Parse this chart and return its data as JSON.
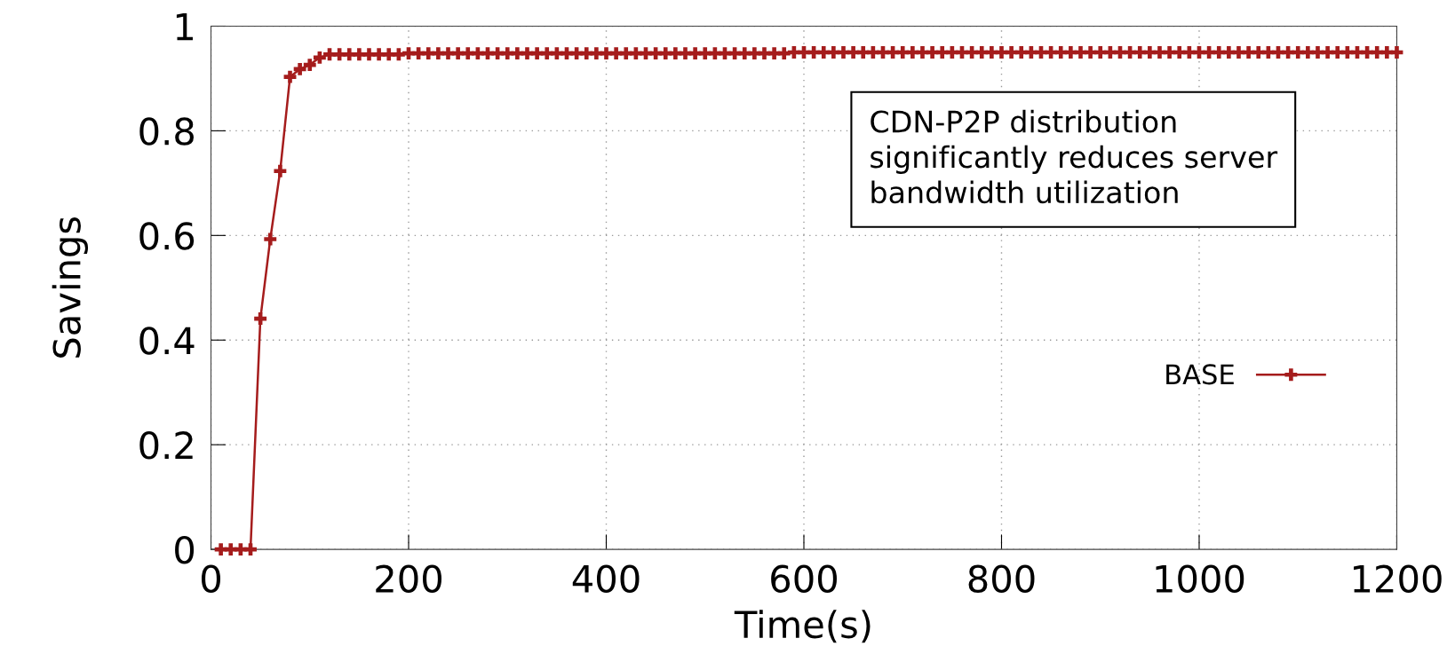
{
  "chart_data": {
    "type": "line",
    "xlabel": "Time(s)",
    "ylabel": "Savings",
    "annotations": [
      "CDN-P2P distribution\nsignificantly reduces server\nbandwidth utilization"
    ],
    "x": [
      10,
      20,
      30,
      40,
      50,
      60,
      70,
      80,
      90,
      100,
      110,
      120,
      130,
      140,
      150,
      160,
      170,
      180,
      190,
      200,
      210,
      220,
      230,
      240,
      250,
      260,
      270,
      280,
      290,
      300,
      310,
      320,
      330,
      340,
      350,
      360,
      370,
      380,
      390,
      400,
      410,
      420,
      430,
      440,
      450,
      460,
      470,
      480,
      490,
      500,
      510,
      520,
      530,
      540,
      550,
      560,
      570,
      580,
      590,
      600,
      610,
      620,
      630,
      640,
      650,
      660,
      670,
      680,
      690,
      700,
      710,
      720,
      730,
      740,
      750,
      760,
      770,
      780,
      790,
      800,
      810,
      820,
      830,
      840,
      850,
      860,
      870,
      880,
      890,
      900,
      910,
      920,
      930,
      940,
      950,
      960,
      970,
      980,
      990,
      1000,
      1010,
      1020,
      1030,
      1040,
      1050,
      1060,
      1070,
      1080,
      1090,
      1100,
      1110,
      1120,
      1130,
      1140,
      1150,
      1160,
      1170,
      1180,
      1190,
      1200
    ],
    "series": [
      {
        "name": "BASE",
        "color": "#a51c1c",
        "values": [
          0,
          0,
          0,
          0,
          0.441,
          0.593,
          0.723,
          0.903,
          0.918,
          0.926,
          0.94,
          0.946,
          0.946,
          0.946,
          0.946,
          0.946,
          0.946,
          0.946,
          0.946,
          0.948,
          0.948,
          0.948,
          0.948,
          0.948,
          0.948,
          0.948,
          0.948,
          0.948,
          0.948,
          0.948,
          0.948,
          0.948,
          0.948,
          0.948,
          0.948,
          0.948,
          0.948,
          0.948,
          0.948,
          0.948,
          0.948,
          0.948,
          0.948,
          0.948,
          0.948,
          0.948,
          0.948,
          0.948,
          0.948,
          0.948,
          0.948,
          0.948,
          0.948,
          0.948,
          0.948,
          0.948,
          0.948,
          0.948,
          0.95,
          0.95,
          0.95,
          0.95,
          0.95,
          0.95,
          0.95,
          0.95,
          0.95,
          0.95,
          0.95,
          0.95,
          0.95,
          0.95,
          0.95,
          0.95,
          0.95,
          0.95,
          0.95,
          0.95,
          0.95,
          0.95,
          0.95,
          0.95,
          0.95,
          0.95,
          0.95,
          0.95,
          0.95,
          0.95,
          0.95,
          0.95,
          0.95,
          0.95,
          0.95,
          0.95,
          0.95,
          0.95,
          0.95,
          0.95,
          0.95,
          0.95,
          0.95,
          0.95,
          0.95,
          0.95,
          0.95,
          0.95,
          0.95,
          0.95,
          0.95,
          0.95,
          0.95,
          0.95,
          0.95,
          0.95,
          0.95,
          0.95,
          0.95,
          0.95,
          0.95,
          0.95
        ]
      }
    ],
    "xlim": [
      0,
      1200
    ],
    "xticks": [
      0,
      200,
      400,
      600,
      800,
      1000,
      1200
    ],
    "ylim": [
      0,
      1
    ],
    "yticks": [
      0,
      0.2,
      0.4,
      0.6,
      0.8,
      1
    ],
    "grid": true,
    "legend": "right",
    "marker": "cross",
    "line_style": "solid"
  }
}
